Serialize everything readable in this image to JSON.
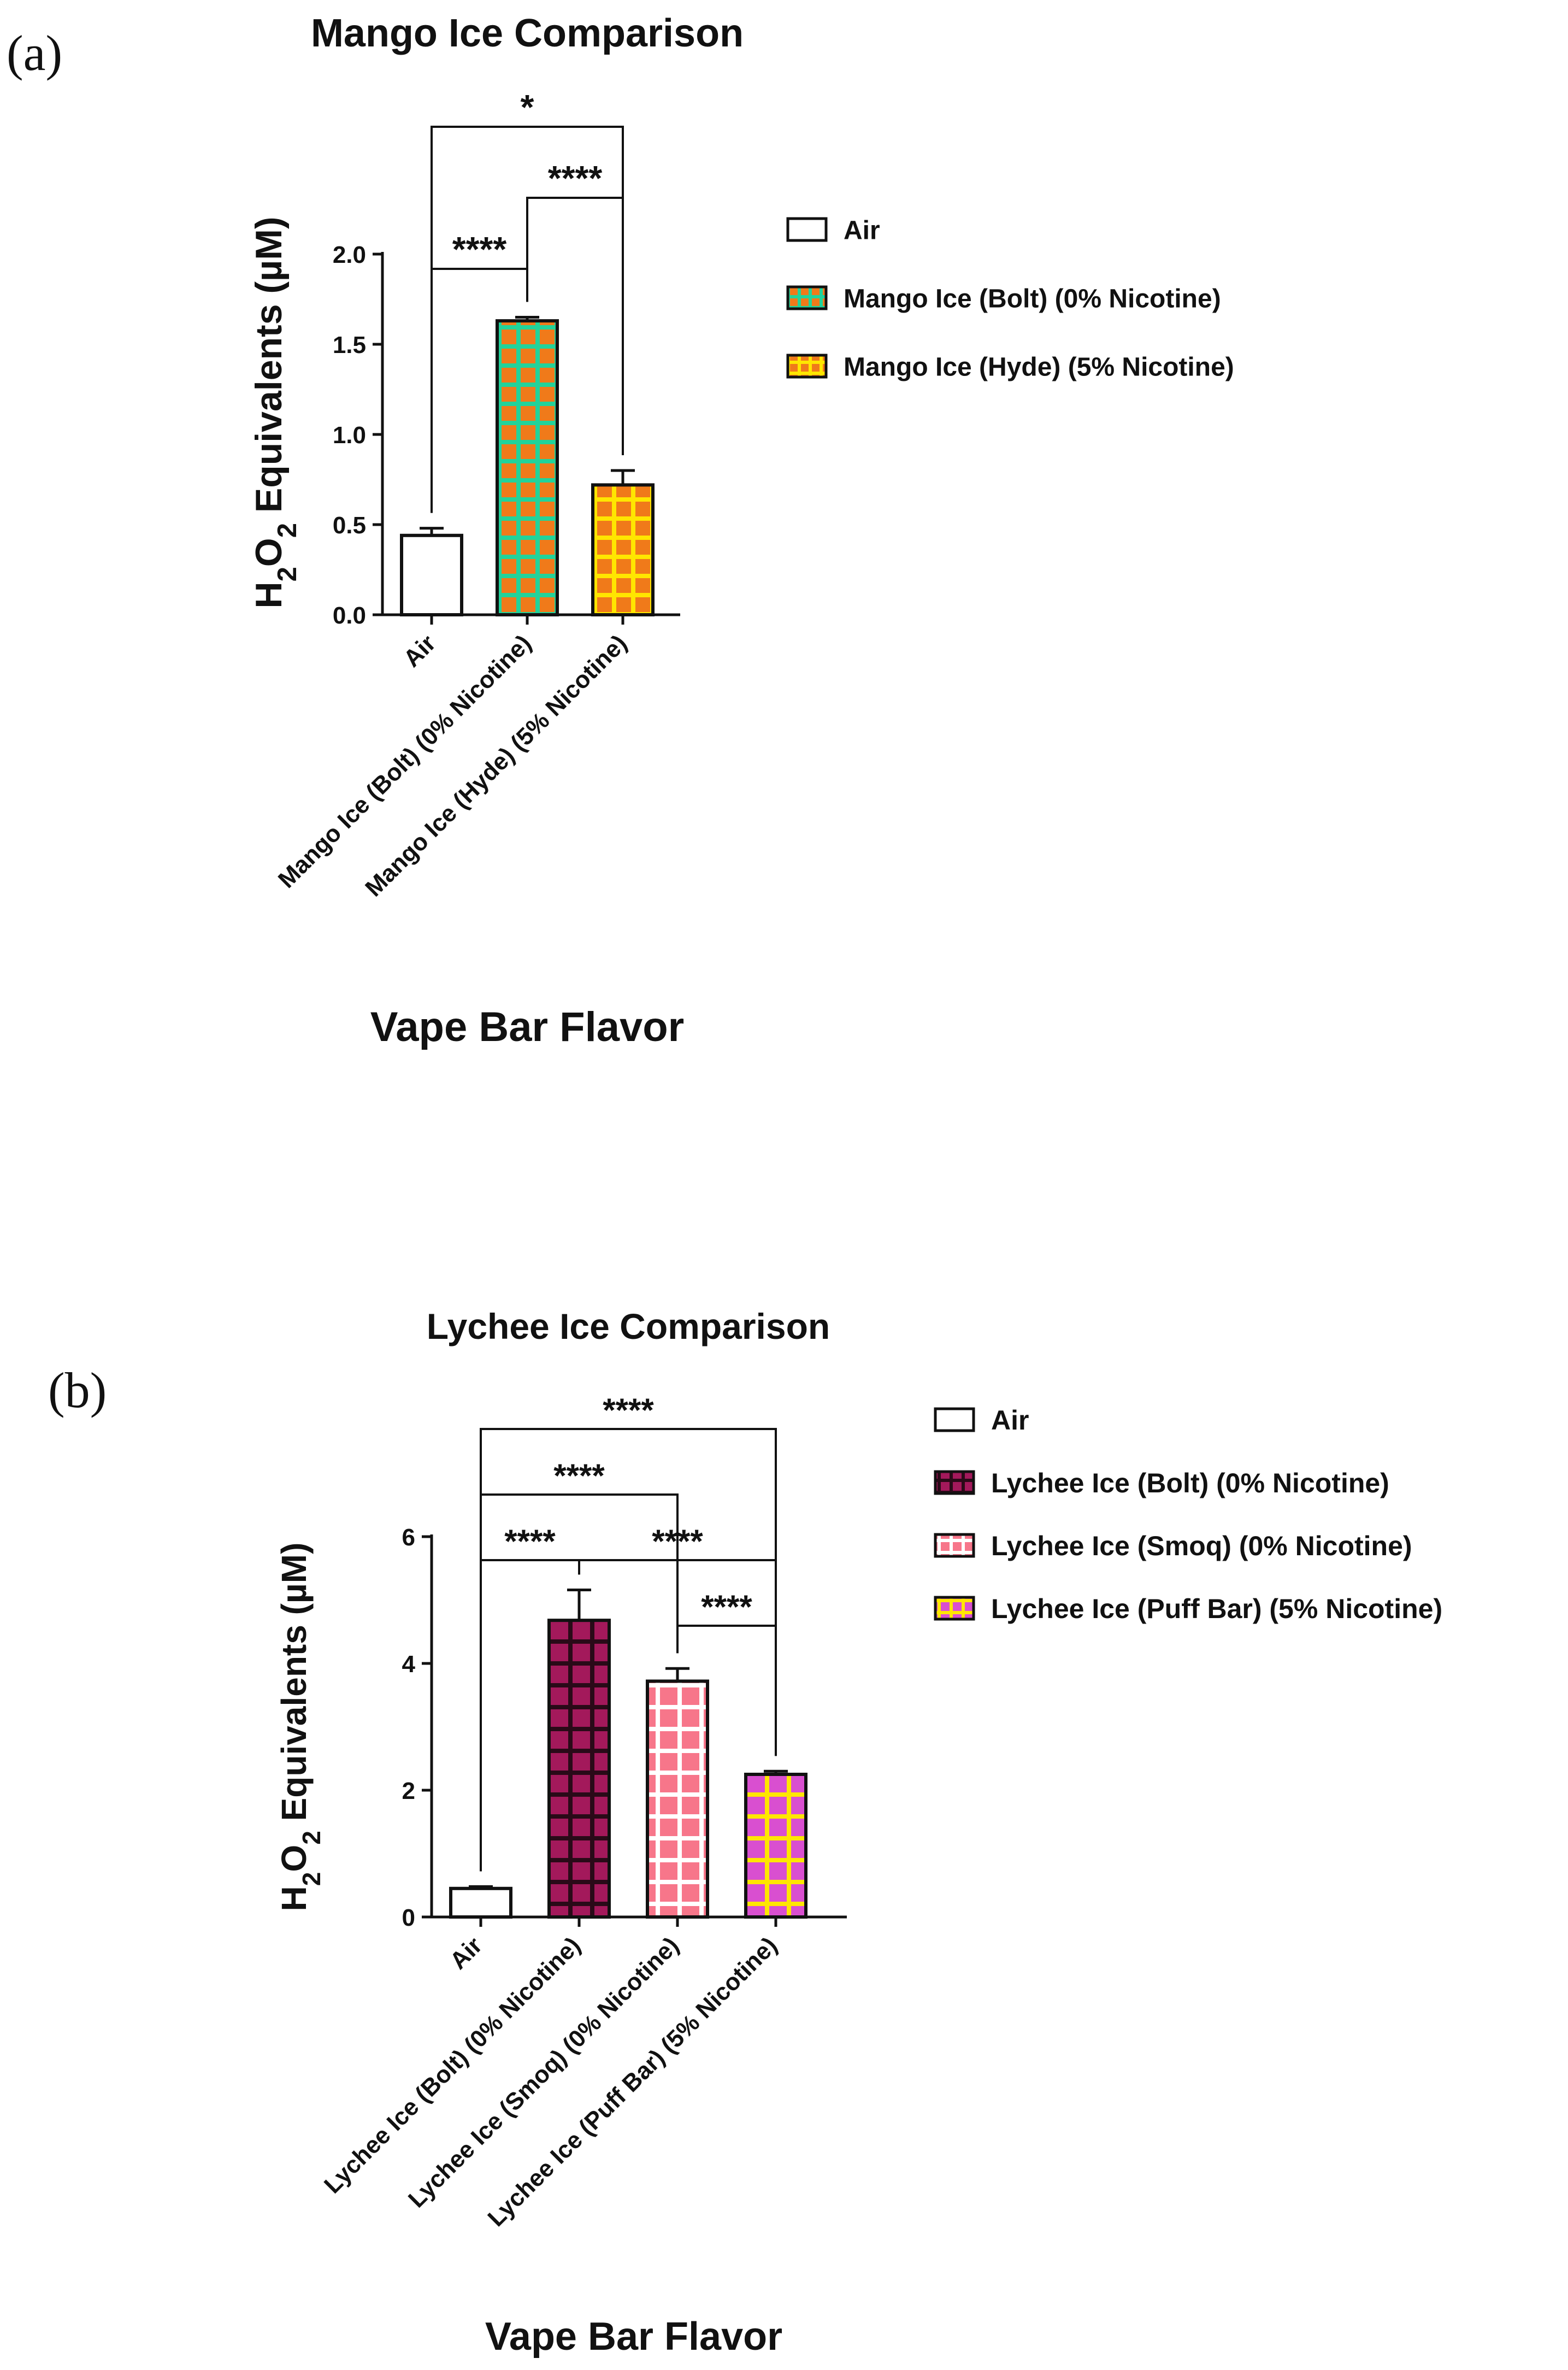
{
  "chart_data": [
    {
      "panel": "(a)",
      "type": "bar",
      "title": "Mango Ice Comparison",
      "ylabel": "H2O2 Equivalents (µM)",
      "xlabel": "Vape Bar Flavor",
      "ylim": [
        0,
        2.0
      ],
      "yticks": [
        0.0,
        0.5,
        1.0,
        1.5,
        2.0
      ],
      "ytick_labels": [
        "0.0",
        "0.5",
        "1.0",
        "1.5",
        "2.0"
      ],
      "categories": [
        "Air",
        "Mango Ice (Bolt) (0% Nicotine)",
        "Mango Ice (Hyde) (5% Nicotine)"
      ],
      "values": [
        0.44,
        1.63,
        0.72
      ],
      "errors": [
        0.04,
        0.02,
        0.08
      ],
      "fills": [
        "#ffffff",
        "#f07a1a",
        "#f07a1a"
      ],
      "grids": [
        "",
        "#22d39a",
        "#ffe600"
      ],
      "legend": [
        {
          "label": "Air"
        },
        {
          "label": "Mango Ice (Bolt) (0% Nicotine)"
        },
        {
          "label": "Mango Ice (Hyde) (5% Nicotine)"
        }
      ],
      "significance": [
        {
          "from": 0,
          "to": 2,
          "label": "*"
        },
        {
          "from": 1,
          "to": 2,
          "label": "****"
        },
        {
          "from": 0,
          "to": 1,
          "label": "****"
        }
      ]
    },
    {
      "panel": "(b)",
      "type": "bar",
      "title": "Lychee Ice Comparison",
      "ylabel": "H2O2 Equivalents (µM)",
      "xlabel": "Vape Bar Flavor",
      "ylim": [
        0,
        6
      ],
      "yticks": [
        0,
        2,
        4,
        6
      ],
      "ytick_labels": [
        "0",
        "2",
        "4",
        "6"
      ],
      "categories": [
        "Air",
        "Lychee Ice (Bolt) (0% Nicotine)",
        "Lychee Ice (Smoq) (0% Nicotine)",
        "Lychee Ice (Puff Bar) (5% Nicotine)"
      ],
      "values": [
        0.45,
        4.68,
        3.72,
        2.25
      ],
      "errors": [
        0.03,
        0.48,
        0.2,
        0.05
      ],
      "fills": [
        "#ffffff",
        "#a3195b",
        "#f7768a",
        "#d94fd0"
      ],
      "grids": [
        "",
        "#2a0a18",
        "#ffffff",
        "#ffe600"
      ],
      "legend": [
        {
          "label": "Air"
        },
        {
          "label": "Lychee Ice (Bolt) (0% Nicotine)"
        },
        {
          "label": "Lychee Ice (Smoq) (0% Nicotine)"
        },
        {
          "label": "Lychee Ice (Puff Bar) (5% Nicotine)"
        }
      ],
      "significance": [
        {
          "from": 0,
          "to": 3,
          "label": "****"
        },
        {
          "from": 0,
          "to": 2,
          "label": "****"
        },
        {
          "from": 0,
          "to": 1,
          "label": "****"
        },
        {
          "from": 1,
          "to": 3,
          "label": "****"
        },
        {
          "from": 2,
          "to": 3,
          "label": "****"
        }
      ]
    }
  ]
}
